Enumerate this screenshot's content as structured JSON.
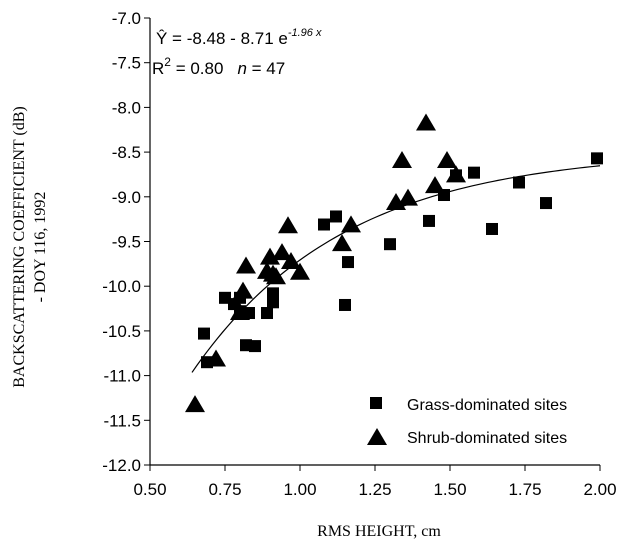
{
  "chart_data": {
    "type": "scatter",
    "xlabel": "RMS HEIGHT, cm",
    "ylabel_line1": "BACKSCATTERING COEFFICIENT (dB)",
    "ylabel_line2": "- DOY 116, 1992",
    "xlim": [
      0.5,
      2.0
    ],
    "ylim": [
      -12.0,
      -7.0
    ],
    "x_ticks": [
      "0.50",
      "0.75",
      "1.00",
      "1.25",
      "1.50",
      "1.75",
      "2.00"
    ],
    "x_tick_values": [
      0.5,
      0.75,
      1.0,
      1.25,
      1.5,
      1.75,
      2.0
    ],
    "y_ticks": [
      "-7.0",
      "-7.5",
      "-8.0",
      "-8.5",
      "-9.0",
      "-9.5",
      "-10.0",
      "-10.5",
      "-11.0",
      "-11.5",
      "-12.0"
    ],
    "y_tick_values": [
      -7.0,
      -7.5,
      -8.0,
      -8.5,
      -9.0,
      -9.5,
      -10.0,
      -10.5,
      -11.0,
      -11.5,
      -12.0
    ],
    "grid": false,
    "legend_placement": "bottom-right",
    "equation": {
      "lhs": "Ŷ = -8.48 - 8.71 e",
      "exponent": "-1.96 x",
      "r2_label": "R",
      "r2_sup": "2",
      "r2_value": " = 0.80",
      "n_label": "n",
      "n_value": " = 47"
    },
    "fit": {
      "a": -8.48,
      "b": -8.71,
      "c": -1.96,
      "x_range": [
        0.64,
        2.0
      ]
    },
    "series": [
      {
        "name": "Grass-dominated sites",
        "marker": "square",
        "points": [
          [
            0.68,
            -10.53
          ],
          [
            0.69,
            -10.85
          ],
          [
            0.75,
            -10.13
          ],
          [
            0.78,
            -10.2
          ],
          [
            0.8,
            -10.13
          ],
          [
            0.8,
            -10.28
          ],
          [
            0.82,
            -10.66
          ],
          [
            0.83,
            -10.3
          ],
          [
            0.85,
            -10.67
          ],
          [
            0.89,
            -10.3
          ],
          [
            0.91,
            -10.18
          ],
          [
            0.91,
            -10.08
          ],
          [
            1.08,
            -9.31
          ],
          [
            1.12,
            -9.22
          ],
          [
            1.15,
            -10.21
          ],
          [
            1.16,
            -9.73
          ],
          [
            1.3,
            -9.53
          ],
          [
            1.43,
            -9.27
          ],
          [
            1.48,
            -8.98
          ],
          [
            1.52,
            -8.76
          ],
          [
            1.58,
            -8.73
          ],
          [
            1.64,
            -9.36
          ],
          [
            1.73,
            -8.84
          ],
          [
            1.82,
            -9.07
          ],
          [
            1.99,
            -8.57
          ]
        ]
      },
      {
        "name": "Shrub-dominated sites",
        "marker": "triangle",
        "points": [
          [
            0.65,
            -11.33
          ],
          [
            0.72,
            -10.82
          ],
          [
            0.8,
            -10.3
          ],
          [
            0.81,
            -10.06
          ],
          [
            0.82,
            -9.78
          ],
          [
            0.89,
            -9.84
          ],
          [
            0.9,
            -9.68
          ],
          [
            0.91,
            -9.87
          ],
          [
            0.94,
            -9.63
          ],
          [
            0.96,
            -9.33
          ],
          [
            0.97,
            -9.73
          ],
          [
            1.0,
            -9.85
          ],
          [
            1.14,
            -9.53
          ],
          [
            1.17,
            -9.32
          ],
          [
            1.32,
            -9.07
          ],
          [
            1.34,
            -8.6
          ],
          [
            1.36,
            -9.02
          ],
          [
            1.42,
            -8.18
          ],
          [
            1.45,
            -8.88
          ],
          [
            1.49,
            -8.6
          ],
          [
            1.52,
            -8.76
          ],
          [
            0.92,
            -9.9
          ]
        ]
      }
    ]
  }
}
